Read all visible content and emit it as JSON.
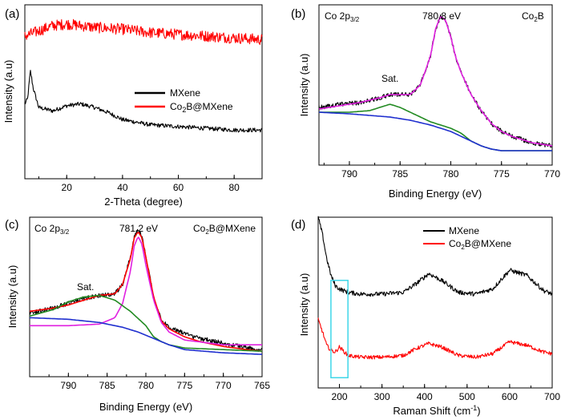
{
  "figure": {
    "description_labels": [
      "(a)",
      "(b)",
      "(c)",
      "(d)"
    ]
  },
  "chart_data": [
    {
      "panel_label": "(a)",
      "type": "line",
      "title": "",
      "xlabel": "2-Theta (degree)",
      "ylabel": "Intensity (a.u)",
      "xlim": [
        5,
        90
      ],
      "ylim": [
        0,
        100
      ],
      "xticks": [
        20,
        40,
        60,
        80
      ],
      "legend_position": "center-right",
      "series": [
        {
          "name": "MXene",
          "color": "#000000",
          "noise": 1.2,
          "x": [
            5,
            6,
            7,
            8,
            10,
            15,
            20,
            25,
            30,
            35,
            40,
            50,
            60,
            70,
            80,
            90
          ],
          "y": [
            43,
            46,
            62,
            52,
            41,
            39,
            42,
            43,
            41,
            38,
            34,
            31,
            30,
            29,
            28,
            28
          ]
        },
        {
          "name": "Co2B@MXene",
          "color": "#ff0000",
          "noise": 3.2,
          "x": [
            5,
            10,
            15,
            20,
            25,
            30,
            40,
            50,
            60,
            70,
            80,
            90
          ],
          "y": [
            82,
            85,
            88,
            89,
            88,
            87,
            86,
            84,
            83,
            82,
            81,
            80
          ]
        }
      ],
      "legend": [
        {
          "text": "MXene",
          "color": "#000000"
        },
        {
          "text": "Co2B@MXene",
          "color": "#ff0000"
        }
      ]
    },
    {
      "panel_label": "(b)",
      "type": "line",
      "xlabel": "Binding Energy (eV)",
      "ylabel": "Intensity (a.u)",
      "xlim": [
        793,
        770
      ],
      "ylim": [
        0,
        100
      ],
      "xticks": [
        790,
        785,
        780,
        775,
        770
      ],
      "annotations": [
        {
          "text": "Co 2p3/2",
          "position": "top-left"
        },
        {
          "text": "780.8 eV",
          "x": 781,
          "y": 92
        },
        {
          "text": "Sat.",
          "x": 786.3,
          "y": 48
        },
        {
          "text": "Co2B",
          "position": "top-right"
        }
      ],
      "series": [
        {
          "name": "raw",
          "color": "#000000",
          "noise": 1.4,
          "x": [
            793,
            791,
            789,
            787,
            786,
            785,
            784,
            783,
            782,
            781.5,
            781,
            780.5,
            780,
            779.5,
            779,
            778,
            777,
            776,
            775,
            774,
            772,
            770
          ],
          "y": [
            36,
            38,
            39,
            42,
            44,
            44,
            44,
            50,
            68,
            85,
            93,
            90,
            80,
            67,
            58,
            44,
            34,
            26,
            21,
            18,
            14,
            12
          ]
        },
        {
          "name": "envelope",
          "color": "#e020e0",
          "x": [
            793,
            791,
            789,
            787,
            786,
            785,
            784,
            783,
            782,
            781.5,
            781,
            780.5,
            780,
            779.5,
            779,
            778,
            777,
            776,
            775,
            774,
            772,
            770
          ],
          "y": [
            35,
            37,
            39,
            42,
            44,
            44,
            44,
            50,
            68,
            85,
            93,
            90,
            80,
            67,
            58,
            44,
            34,
            26,
            21,
            18,
            14,
            12
          ]
        },
        {
          "name": "satellite",
          "color": "#228b22",
          "x": [
            793,
            790,
            788,
            786.5,
            786,
            785,
            784,
            783,
            782,
            781,
            780,
            779,
            778,
            777,
            776,
            775,
            774,
            772,
            770
          ],
          "y": [
            33,
            33,
            34,
            37,
            38,
            36,
            33,
            30,
            27,
            25,
            23,
            20,
            15,
            12,
            10,
            9,
            9,
            9,
            9
          ]
        },
        {
          "name": "background",
          "color": "#1f2fcf",
          "x": [
            793,
            790,
            788,
            786,
            784,
            782,
            781,
            780,
            779,
            778,
            777,
            776,
            775,
            774,
            772,
            770
          ],
          "y": [
            33,
            32,
            31,
            30,
            28,
            25,
            23,
            21,
            18,
            15,
            12,
            10,
            9,
            9,
            9,
            9
          ]
        }
      ]
    },
    {
      "panel_label": "(c)",
      "type": "line",
      "xlabel": "Binding Energy (eV)",
      "ylabel": "Intensity (a.u)",
      "xlim": [
        795,
        765
      ],
      "ylim": [
        0,
        100
      ],
      "xticks": [
        790,
        785,
        780,
        775,
        770,
        765
      ],
      "annotations": [
        {
          "text": "Co 2p3/2",
          "position": "top-left"
        },
        {
          "text": "781.2 eV",
          "x": 781.2,
          "y": 93
        },
        {
          "text": "Sat.",
          "x": 787.5,
          "y": 56
        },
        {
          "text": "Co2B@MXene",
          "position": "top-right"
        }
      ],
      "series": [
        {
          "name": "raw",
          "color": "#000000",
          "noise": 1.4,
          "x": [
            795,
            792,
            790,
            788,
            786,
            784,
            783,
            782,
            781.5,
            781,
            780.5,
            780,
            779,
            778,
            777,
            775,
            773,
            770,
            767,
            765
          ],
          "y": [
            40,
            43,
            46,
            49,
            51,
            52,
            58,
            75,
            88,
            92,
            88,
            76,
            50,
            35,
            31,
            27,
            24,
            21,
            18,
            17
          ]
        },
        {
          "name": "envelope",
          "color": "#ff0000",
          "x": [
            795,
            792,
            790,
            788,
            786,
            784,
            783,
            782,
            781.5,
            781,
            780.5,
            780,
            779,
            778,
            777,
            775,
            773,
            770,
            767,
            765
          ],
          "y": [
            41,
            43,
            45,
            48,
            51,
            52,
            58,
            74,
            87,
            91,
            87,
            75,
            50,
            35,
            30,
            25,
            22,
            19,
            17,
            16
          ]
        },
        {
          "name": "main-peak",
          "color": "#e020e0",
          "x": [
            795,
            790,
            786,
            784,
            783,
            782,
            781.5,
            781,
            780.5,
            780,
            779,
            778,
            777,
            775,
            770,
            765
          ],
          "y": [
            32,
            32,
            33,
            37,
            46,
            66,
            82,
            88,
            83,
            70,
            48,
            34,
            28,
            23,
            20,
            20
          ]
        },
        {
          "name": "satellite",
          "color": "#228b22",
          "x": [
            795,
            792,
            790,
            788,
            786,
            784,
            782,
            780,
            779,
            778,
            777,
            776,
            775,
            770,
            765
          ],
          "y": [
            38,
            42,
            47,
            50,
            51,
            48,
            41,
            32,
            25,
            22,
            20,
            19,
            18,
            17,
            16
          ]
        },
        {
          "name": "background",
          "color": "#1f2fcf",
          "x": [
            795,
            790,
            786,
            783,
            781,
            779,
            777,
            775,
            770,
            765
          ],
          "y": [
            37,
            36,
            34,
            31,
            28,
            24,
            20,
            17,
            15,
            14
          ]
        }
      ]
    },
    {
      "panel_label": "(d)",
      "type": "line",
      "xlabel": "Raman Shift (cm-1)",
      "ylabel": "Intensity (a.u)",
      "xlim": [
        150,
        700
      ],
      "ylim": [
        0,
        100
      ],
      "xticks": [
        200,
        300,
        400,
        500,
        600,
        700
      ],
      "highlight_range": {
        "x": [
          180,
          220
        ],
        "y": [
          6,
          63
        ]
      },
      "legend_position": "top-right",
      "series": [
        {
          "name": "MXene",
          "color": "#000000",
          "noise": 1.3,
          "x": [
            150,
            160,
            170,
            180,
            190,
            200,
            220,
            250,
            300,
            350,
            380,
            410,
            440,
            480,
            520,
            560,
            600,
            640,
            680,
            700
          ],
          "y": [
            100,
            90,
            76,
            66,
            60,
            58,
            56,
            55,
            55,
            56,
            61,
            67,
            63,
            56,
            55,
            58,
            69,
            66,
            57,
            55
          ]
        },
        {
          "name": "Co2B@MXene",
          "color": "#ff0000",
          "noise": 1.1,
          "x": [
            150,
            160,
            170,
            180,
            190,
            200,
            220,
            250,
            300,
            350,
            380,
            410,
            440,
            480,
            520,
            560,
            600,
            640,
            680,
            700
          ],
          "y": [
            40,
            33,
            25,
            22,
            21,
            24,
            19,
            18,
            18,
            19,
            23,
            26,
            24,
            19,
            18,
            20,
            27,
            25,
            21,
            20
          ]
        }
      ],
      "legend": [
        {
          "text": "MXene",
          "color": "#000000"
        },
        {
          "text": "Co2B@MXene",
          "color": "#ff0000"
        }
      ]
    }
  ]
}
